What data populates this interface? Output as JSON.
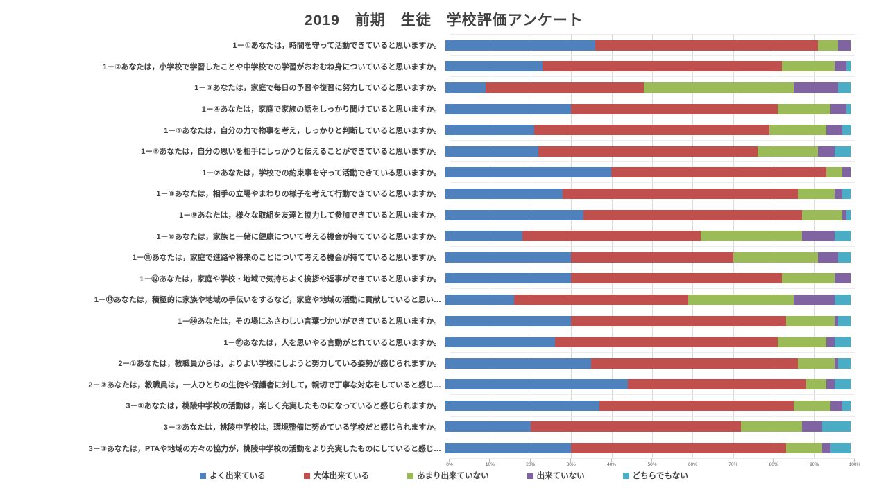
{
  "title": "2019　前期　生徒　学校評価アンケート",
  "chart_data": {
    "type": "bar",
    "subtype": "horizontal-stacked-100",
    "title": "2019　前期　生徒　学校評価アンケート",
    "xlabel": "",
    "ylabel": "",
    "xlim": [
      0,
      100
    ],
    "grid": true,
    "legend_position": "bottom",
    "x_ticks": [
      "0%",
      "10%",
      "20%",
      "30%",
      "40%",
      "50%",
      "60%",
      "70%",
      "80%",
      "90%",
      "100%"
    ],
    "categories": [
      "1－①あなたは，時間を守って活動できていると思いますか。",
      "1－②あなたは，小学校で学習したことや中学校での学習がおおむね身についていると思いますか。",
      "1－③あなたは，家庭で毎日の予習や復習に努力していると思いますか。",
      "1－④あなたは，家庭で家族の話をしっかり聞けていると思いますか。",
      "1－⑤あなたは，自分の力で物事を考え，しっかりと判断していると思いますか。",
      "1－⑥あなたは，自分の思いを相手にしっかりと伝えることができていると思いますか。",
      "1－⑦あなたは，学校での約束事を守って活動できている思いますか。",
      "1－⑧あなたは，相手の立場やまわりの様子を考えて行動できていると思いますか。",
      "1－⑨あなたは，様々な取組を友達と協力して参加できていると思いますか。",
      "1－⑩あなたは，家族と一緒に健康について考える機会が持てていると思いますか。",
      "1－⑪あなたは，家庭で進路や将来のことについて考える機会が持てていると思いますか。",
      "1－⑫あなたは，家庭や学校・地域で気持ちよく挨拶や返事ができていると思いますか。",
      "1－⑬あなたは，積極的に家族や地域の手伝いをするなど，家庭や地域の活動に貢献していると思い…",
      "1－⑭あなたは，その場にふさわしい言葉づかいができていると思いますか。",
      "1－⑮あなたは，人を思いやる言動がとれていると思いますか。",
      "2－①あなたは，教職員からは，よりよい学校にしようと努力している姿勢が感じられますか。",
      "2－②あなたは，教職員は，一人ひとりの生徒や保護者に対して，親切で丁寧な対応をしていると感じ…",
      "3－①あなたは，桃陵中学校の活動は，楽しく充実したものになっていると感じられますか。",
      "3－②あなたは，桃陵中学校は，環境整備に努めている学校だと感じられますか。",
      "3－③あなたは，PTAや地域の方々の協力が，桃陵中学校の活動をより充実したものにしていると感じ…"
    ],
    "series": [
      {
        "name": "よく出来ている",
        "color": "#4F81BD",
        "values": [
          37,
          24,
          10,
          31,
          22,
          23,
          41,
          29,
          34,
          19,
          31,
          31,
          17,
          31,
          27,
          36,
          45,
          38,
          21,
          31
        ]
      },
      {
        "name": "大体出来ている",
        "color": "#C0504D",
        "values": [
          55,
          59,
          39,
          51,
          58,
          54,
          53,
          58,
          54,
          44,
          40,
          52,
          43,
          53,
          55,
          51,
          44,
          48,
          52,
          53
        ]
      },
      {
        "name": "あまり出来ていない",
        "color": "#9BBB59",
        "values": [
          5,
          13,
          37,
          13,
          14,
          15,
          4,
          9,
          10,
          25,
          21,
          13,
          26,
          12,
          12,
          9,
          5,
          9,
          15,
          9
        ]
      },
      {
        "name": "出来ていない",
        "color": "#8064A2",
        "values": [
          3,
          3,
          11,
          4,
          4,
          4,
          2,
          2,
          1,
          8,
          5,
          4,
          10,
          1,
          2,
          1,
          2,
          3,
          5,
          2
        ]
      },
      {
        "name": "どちらでもない",
        "color": "#4BACC6",
        "values": [
          0,
          1,
          3,
          1,
          2,
          4,
          0,
          2,
          1,
          4,
          3,
          0,
          4,
          3,
          4,
          3,
          4,
          2,
          7,
          5
        ]
      }
    ]
  }
}
